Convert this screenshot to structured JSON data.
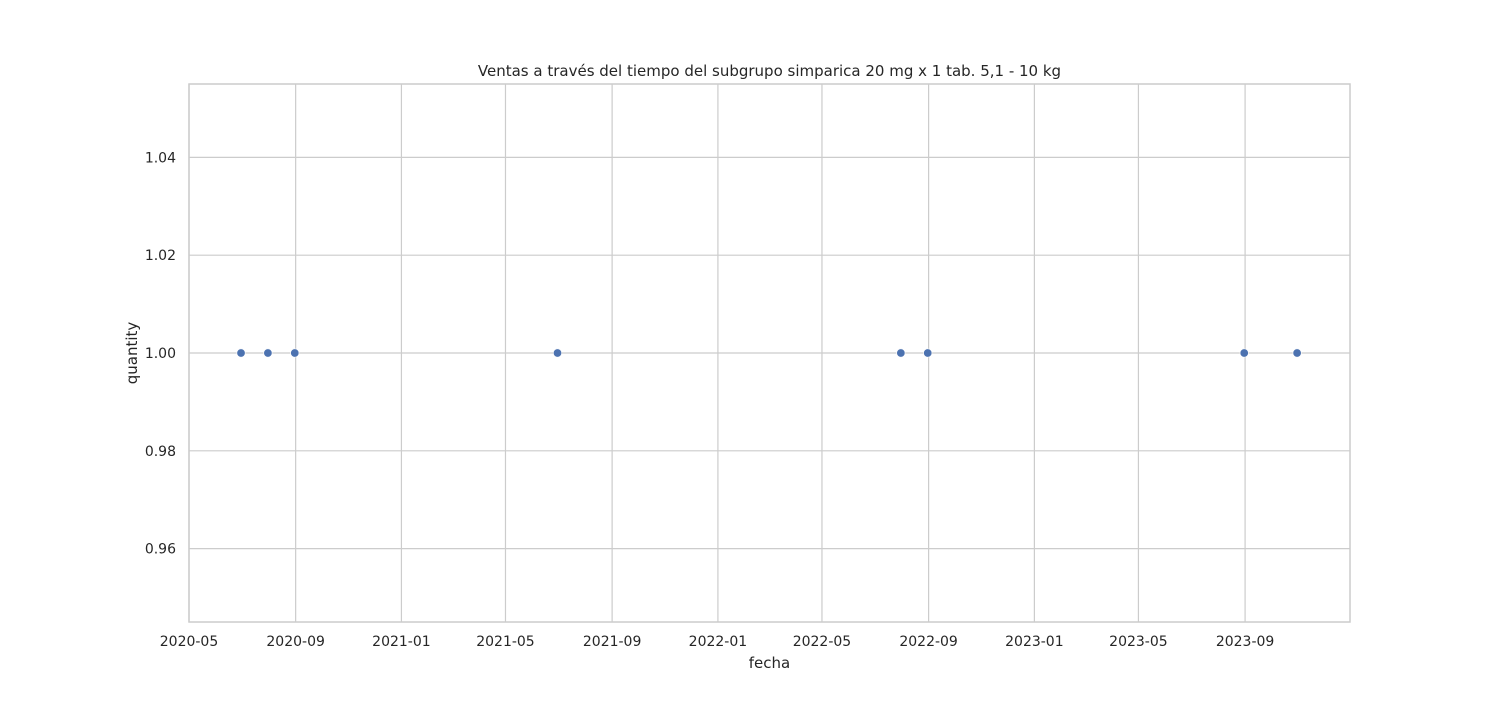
{
  "chart_data": {
    "type": "scatter",
    "title": "Ventas a través del tiempo del subgrupo simparica 20 mg x 1 tab. 5,1 - 10 kg",
    "xlabel": "fecha",
    "ylabel": "quantity",
    "x_scale": "date",
    "xlim": [
      "2020-05-01",
      "2023-12-31"
    ],
    "ylim": [
      0.945,
      1.055
    ],
    "x_ticks": [
      "2020-05",
      "2020-09",
      "2021-01",
      "2021-05",
      "2021-09",
      "2022-01",
      "2022-05",
      "2022-09",
      "2023-01",
      "2023-05",
      "2023-09"
    ],
    "y_ticks": [
      "0.96",
      "0.98",
      "1.00",
      "1.02",
      "1.04"
    ],
    "grid": true,
    "marker_color": "#4c72b0",
    "grid_color": "#cccccc",
    "points": [
      {
        "x": "2020-06-30",
        "y": 1
      },
      {
        "x": "2020-07-31",
        "y": 1
      },
      {
        "x": "2020-08-31",
        "y": 1
      },
      {
        "x": "2021-06-30",
        "y": 1
      },
      {
        "x": "2022-07-31",
        "y": 1
      },
      {
        "x": "2022-08-31",
        "y": 1
      },
      {
        "x": "2023-08-31",
        "y": 1
      },
      {
        "x": "2023-10-31",
        "y": 1
      }
    ]
  }
}
